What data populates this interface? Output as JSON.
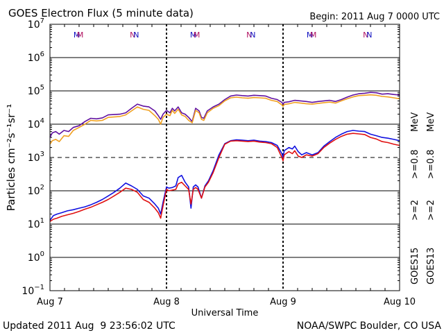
{
  "chart_data": {
    "type": "line",
    "title": "GOES Electron Flux (5 minute data)",
    "begin_label": "Begin: 2011 Aug 7 0000 UTC",
    "xlabel": "Universal Time",
    "ylabel": "Particles cm⁻²s⁻¹sr⁻¹",
    "y_scale": "log",
    "ylim": [
      0.1,
      10000000
    ],
    "y_dashed_line": 1000,
    "x_range_days": [
      0,
      3
    ],
    "x_ticks": [
      {
        "day": 0,
        "label": "Aug 7"
      },
      {
        "day": 1,
        "label": "Aug 8"
      },
      {
        "day": 2,
        "label": "Aug 9"
      },
      {
        "day": 3,
        "label": "Aug 10"
      }
    ],
    "y_ticks": [
      {
        "value": 0.1,
        "base": "10",
        "exp": "−1"
      },
      {
        "value": 1,
        "base": "10",
        "exp": "0"
      },
      {
        "value": 10,
        "base": "10",
        "exp": "1"
      },
      {
        "value": 100,
        "base": "10",
        "exp": "2"
      },
      {
        "value": 1000,
        "base": "10",
        "exp": "3"
      },
      {
        "value": 10000,
        "base": "10",
        "exp": "4"
      },
      {
        "value": 100000,
        "base": "10",
        "exp": "5"
      },
      {
        "value": 1000000,
        "base": "10",
        "exp": "6"
      },
      {
        "value": 10000000,
        "base": "10",
        "exp": "7"
      }
    ],
    "mn_markers": [
      {
        "day": 0.23,
        "label": "M",
        "color": "#1010c0"
      },
      {
        "day": 0.26,
        "label": "M",
        "color": "#b01060"
      },
      {
        "day": 0.71,
        "label": "N",
        "color": "#b01060"
      },
      {
        "day": 0.74,
        "label": "N",
        "color": "#1010c0"
      },
      {
        "day": 1.23,
        "label": "M",
        "color": "#1010c0"
      },
      {
        "day": 1.26,
        "label": "M",
        "color": "#b01060"
      },
      {
        "day": 1.71,
        "label": "N",
        "color": "#b01060"
      },
      {
        "day": 1.74,
        "label": "N",
        "color": "#1010c0"
      },
      {
        "day": 2.23,
        "label": "M",
        "color": "#1010c0"
      },
      {
        "day": 2.26,
        "label": "M",
        "color": "#b01060"
      },
      {
        "day": 2.71,
        "label": "N",
        "color": "#b01060"
      },
      {
        "day": 2.74,
        "label": "N",
        "color": "#1010c0"
      }
    ],
    "legend": {
      "goes15_label": "GOES15",
      "goes13_label": "GOES13",
      "g15_low": {
        "label": ">=2",
        "color": "#1010e0"
      },
      "g15_high": {
        "label": ">=0.8",
        "color": "#6010a0"
      },
      "g13_low": {
        "label": ">=2",
        "color": "#e01010"
      },
      "g13_high": {
        "label": ">=0.8",
        "color": "#f0a020"
      },
      "unit": "MeV"
    },
    "series": [
      {
        "name": "GOES15 >=0.8 MeV",
        "color": "#6010a0",
        "x": [
          0,
          0.02,
          0.05,
          0.08,
          0.12,
          0.16,
          0.2,
          0.25,
          0.3,
          0.35,
          0.4,
          0.45,
          0.5,
          0.55,
          0.6,
          0.65,
          0.7,
          0.75,
          0.8,
          0.85,
          0.9,
          0.93,
          0.95,
          0.97,
          1.0,
          1.03,
          1.05,
          1.07,
          1.1,
          1.13,
          1.16,
          1.19,
          1.22,
          1.25,
          1.28,
          1.3,
          1.32,
          1.35,
          1.4,
          1.45,
          1.5,
          1.55,
          1.6,
          1.65,
          1.7,
          1.75,
          1.8,
          1.85,
          1.9,
          1.95,
          1.99,
          2.0,
          2.01,
          2.05,
          2.1,
          2.15,
          2.2,
          2.25,
          2.3,
          2.35,
          2.4,
          2.45,
          2.5,
          2.55,
          2.6,
          2.65,
          2.7,
          2.75,
          2.8,
          2.85,
          2.9,
          2.95,
          3.0
        ],
        "y": [
          4000,
          5500,
          6000,
          5000,
          6500,
          6000,
          8000,
          9000,
          12000,
          15000,
          14500,
          15500,
          19000,
          19500,
          20000,
          22000,
          30000,
          40000,
          35000,
          33000,
          25000,
          18000,
          14000,
          20000,
          26000,
          22000,
          30000,
          25000,
          33000,
          22000,
          20000,
          16000,
          12000,
          30000,
          25000,
          16000,
          15000,
          25000,
          33000,
          40000,
          55000,
          70000,
          75000,
          72000,
          70000,
          74000,
          72000,
          70000,
          60000,
          55000,
          45000,
          40000,
          45000,
          47000,
          52000,
          50000,
          48000,
          45000,
          48000,
          50000,
          52000,
          48000,
          55000,
          65000,
          75000,
          82000,
          85000,
          90000,
          88000,
          80000,
          82000,
          78000,
          75000
        ]
      },
      {
        "name": "GOES13 >=0.8 MeV",
        "color": "#f0a020",
        "x": [
          0,
          0.02,
          0.05,
          0.08,
          0.12,
          0.16,
          0.2,
          0.25,
          0.3,
          0.35,
          0.4,
          0.45,
          0.5,
          0.55,
          0.6,
          0.65,
          0.7,
          0.75,
          0.8,
          0.85,
          0.9,
          0.93,
          0.95,
          0.97,
          1.0,
          1.03,
          1.05,
          1.07,
          1.1,
          1.13,
          1.16,
          1.19,
          1.22,
          1.25,
          1.28,
          1.3,
          1.32,
          1.35,
          1.4,
          1.45,
          1.5,
          1.55,
          1.6,
          1.65,
          1.7,
          1.75,
          1.8,
          1.85,
          1.9,
          1.95,
          1.99,
          2.0,
          2.01,
          2.05,
          2.1,
          2.15,
          2.2,
          2.25,
          2.3,
          2.35,
          2.4,
          2.45,
          2.5,
          2.55,
          2.6,
          2.65,
          2.7,
          2.75,
          2.8,
          2.85,
          2.9,
          2.95,
          3.0
        ],
        "y": [
          2500,
          3200,
          3500,
          3000,
          4500,
          4300,
          6500,
          8000,
          10000,
          13000,
          12500,
          13000,
          16000,
          16500,
          17000,
          19000,
          25000,
          33000,
          28000,
          26000,
          18000,
          14000,
          10000,
          16000,
          20000,
          18000,
          26000,
          21000,
          28000,
          19000,
          17000,
          13000,
          11000,
          26000,
          22000,
          14000,
          13000,
          22000,
          30000,
          36000,
          50000,
          62000,
          65000,
          62000,
          60000,
          63000,
          62000,
          60000,
          52000,
          48000,
          38000,
          34000,
          39000,
          41000,
          45000,
          43000,
          41000,
          40000,
          42000,
          44000,
          46000,
          43000,
          50000,
          58000,
          66000,
          72000,
          74000,
          76000,
          74000,
          68000,
          66000,
          62000,
          58000
        ]
      },
      {
        "name": "GOES15 >=2 MeV",
        "color": "#1010e0",
        "x": [
          0,
          0.03,
          0.06,
          0.1,
          0.15,
          0.2,
          0.25,
          0.3,
          0.35,
          0.4,
          0.45,
          0.5,
          0.55,
          0.6,
          0.65,
          0.7,
          0.75,
          0.8,
          0.85,
          0.9,
          0.93,
          0.95,
          0.97,
          1.0,
          1.02,
          1.05,
          1.08,
          1.1,
          1.13,
          1.16,
          1.19,
          1.21,
          1.23,
          1.25,
          1.27,
          1.3,
          1.33,
          1.36,
          1.4,
          1.45,
          1.5,
          1.55,
          1.6,
          1.65,
          1.7,
          1.75,
          1.8,
          1.85,
          1.9,
          1.95,
          1.99,
          2.0,
          2.01,
          2.05,
          2.08,
          2.1,
          2.13,
          2.16,
          2.2,
          2.25,
          2.3,
          2.35,
          2.4,
          2.45,
          2.5,
          2.55,
          2.6,
          2.65,
          2.7,
          2.75,
          2.8,
          2.85,
          2.9,
          2.95,
          3.0
        ],
        "y": [
          13,
          18,
          20,
          22,
          25,
          27,
          30,
          33,
          38,
          45,
          55,
          70,
          90,
          120,
          170,
          140,
          110,
          70,
          60,
          40,
          30,
          20,
          45,
          130,
          120,
          125,
          140,
          250,
          290,
          180,
          130,
          30,
          130,
          150,
          130,
          60,
          140,
          200,
          400,
          1200,
          2600,
          3200,
          3400,
          3300,
          3200,
          3300,
          3100,
          3000,
          2800,
          2300,
          1300,
          1000,
          1600,
          2000,
          1800,
          2200,
          1500,
          1200,
          1400,
          1200,
          1400,
          2200,
          3000,
          4000,
          5000,
          6000,
          6500,
          6200,
          6000,
          5000,
          4500,
          4000,
          3800,
          3500,
          3200
        ]
      },
      {
        "name": "GOES13 >=2 MeV",
        "color": "#e01010",
        "x": [
          0,
          0.03,
          0.06,
          0.1,
          0.15,
          0.2,
          0.25,
          0.3,
          0.35,
          0.4,
          0.45,
          0.5,
          0.55,
          0.6,
          0.65,
          0.7,
          0.75,
          0.8,
          0.85,
          0.9,
          0.93,
          0.95,
          0.97,
          1.0,
          1.02,
          1.05,
          1.08,
          1.1,
          1.13,
          1.16,
          1.19,
          1.21,
          1.23,
          1.25,
          1.27,
          1.3,
          1.33,
          1.36,
          1.4,
          1.45,
          1.5,
          1.55,
          1.6,
          1.65,
          1.7,
          1.75,
          1.8,
          1.85,
          1.9,
          1.95,
          1.99,
          2.0,
          2.01,
          2.05,
          2.08,
          2.1,
          2.13,
          2.16,
          2.2,
          2.25,
          2.3,
          2.35,
          2.4,
          2.45,
          2.5,
          2.55,
          2.6,
          2.65,
          2.7,
          2.75,
          2.8,
          2.85,
          2.9,
          2.95,
          3.0
        ],
        "y": [
          12,
          14,
          15,
          17,
          19,
          21,
          24,
          28,
          32,
          38,
          45,
          55,
          70,
          90,
          120,
          110,
          90,
          55,
          45,
          30,
          22,
          15,
          35,
          110,
          100,
          105,
          110,
          160,
          180,
          140,
          110,
          40,
          110,
          125,
          110,
          60,
          130,
          180,
          350,
          1000,
          2500,
          3100,
          3200,
          3100,
          3000,
          3100,
          2900,
          2800,
          2600,
          2000,
          1000,
          800,
          1200,
          1500,
          1300,
          1600,
          1100,
          1000,
          1200,
          1100,
          1300,
          2000,
          2700,
          3500,
          4300,
          5000,
          5300,
          5100,
          4900,
          4000,
          3600,
          3000,
          2800,
          2500,
          2300
        ]
      }
    ]
  },
  "footer": {
    "updated": "Updated 2011 Aug  9 23:56:02 UTC",
    "credit": "NOAA/SWPC Boulder, CO USA"
  }
}
